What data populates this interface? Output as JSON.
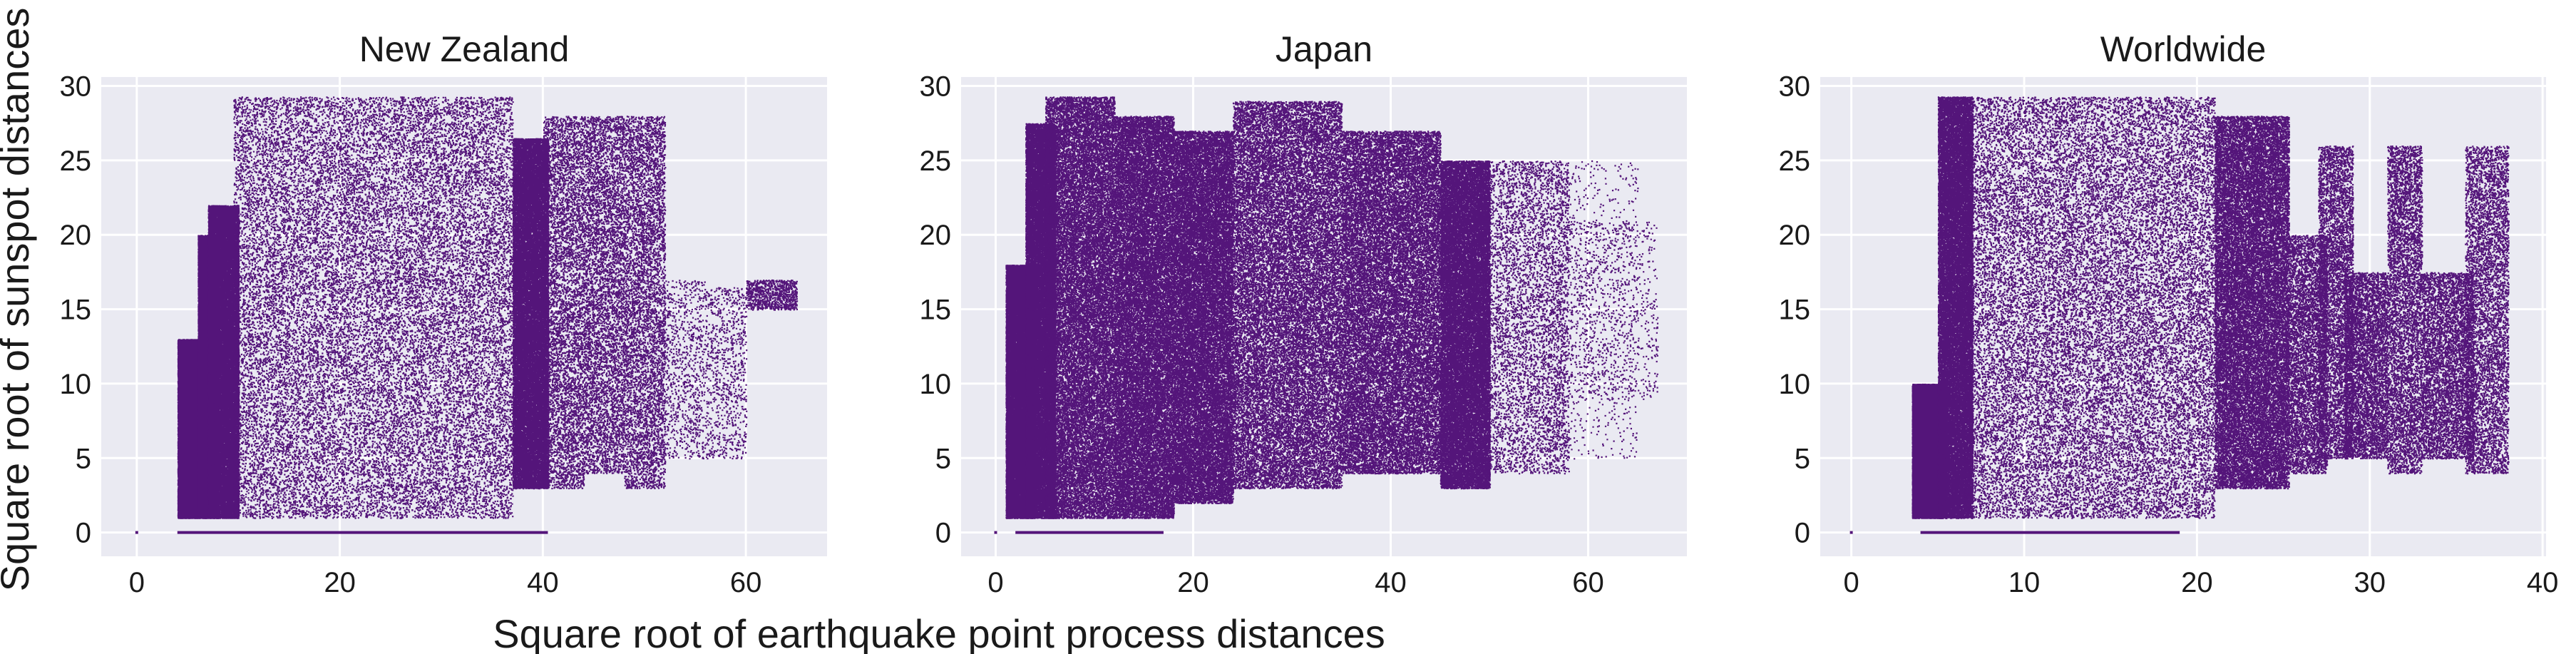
{
  "figure": {
    "xlabel": "Square root of earthquake point process distances",
    "ylabel": "Square root of sunspot distances"
  },
  "style": {
    "point_color": "#54157a",
    "panel_background": "#eaeaf2",
    "grid_color": "#ffffff",
    "grid": true
  },
  "chart_data": [
    {
      "type": "scatter",
      "title": "New Zealand",
      "xlim": [
        -3.5,
        68
      ],
      "ylim": [
        -1.6,
        30.6
      ],
      "xticks": [
        0,
        20,
        40,
        60
      ],
      "yticks": [
        0,
        5,
        10,
        15,
        20,
        25,
        30
      ],
      "baseline_segments": [
        [
          0,
          0,
          0
        ],
        [
          4,
          40.5,
          0
        ]
      ],
      "regions": [
        {
          "x": [
            4,
            7
          ],
          "y": [
            1,
            13
          ],
          "density": "dense"
        },
        {
          "x": [
            6,
            8
          ],
          "y": [
            1,
            20
          ],
          "density": "dense"
        },
        {
          "x": [
            7,
            10
          ],
          "y": [
            1,
            22
          ],
          "density": "dense"
        },
        {
          "x": [
            9.5,
            37
          ],
          "y": [
            1,
            29.3
          ],
          "density": "dense"
        },
        {
          "x": [
            37,
            40.5
          ],
          "y": [
            3,
            26.5
          ],
          "density": "dense"
        },
        {
          "x": [
            40,
            44
          ],
          "y": [
            3,
            28
          ],
          "density": "medium"
        },
        {
          "x": [
            44,
            48
          ],
          "y": [
            4,
            28
          ],
          "density": "medium"
        },
        {
          "x": [
            48,
            52
          ],
          "y": [
            3,
            28
          ],
          "density": "medium"
        },
        {
          "x": [
            52,
            56
          ],
          "y": [
            5,
            17
          ],
          "density": "sparse"
        },
        {
          "x": [
            56,
            60
          ],
          "y": [
            5,
            16.5
          ],
          "density": "sparse"
        },
        {
          "x": [
            60,
            65
          ],
          "y": [
            15,
            17
          ],
          "density": "sparse"
        }
      ]
    },
    {
      "type": "scatter",
      "title": "Japan",
      "xlim": [
        -3.5,
        70
      ],
      "ylim": [
        -1.6,
        30.6
      ],
      "xticks": [
        0,
        20,
        40,
        60
      ],
      "yticks": [
        0,
        5,
        10,
        15,
        20,
        25,
        30
      ],
      "baseline_segments": [
        [
          0,
          0,
          0
        ],
        [
          2,
          17,
          0
        ]
      ],
      "regions": [
        {
          "x": [
            1,
            4
          ],
          "y": [
            1,
            18
          ],
          "density": "dense"
        },
        {
          "x": [
            3,
            6
          ],
          "y": [
            1,
            27.5
          ],
          "density": "dense"
        },
        {
          "x": [
            5,
            12
          ],
          "y": [
            1,
            29.3
          ],
          "density": "dense"
        },
        {
          "x": [
            12,
            18
          ],
          "y": [
            1,
            28
          ],
          "density": "dense"
        },
        {
          "x": [
            18,
            24
          ],
          "y": [
            2,
            27
          ],
          "density": "dense"
        },
        {
          "x": [
            24,
            35
          ],
          "y": [
            3,
            29
          ],
          "density": "dense"
        },
        {
          "x": [
            35,
            45
          ],
          "y": [
            4,
            27
          ],
          "density": "dense"
        },
        {
          "x": [
            45,
            50
          ],
          "y": [
            3,
            25
          ],
          "density": "dense"
        },
        {
          "x": [
            49,
            58
          ],
          "y": [
            4,
            25
          ],
          "density": "medium"
        },
        {
          "x": [
            55,
            65
          ],
          "y": [
            5,
            25
          ],
          "density": "sparse"
        },
        {
          "x": [
            58,
            67
          ],
          "y": [
            9,
            21
          ],
          "density": "sparse"
        }
      ]
    },
    {
      "type": "scatter",
      "title": "Worldwide",
      "xlim": [
        -1.8,
        40.2
      ],
      "ylim": [
        -1.6,
        30.6
      ],
      "xticks": [
        0,
        10,
        20,
        30,
        40
      ],
      "yticks": [
        0,
        5,
        10,
        15,
        20,
        25,
        30
      ],
      "baseline_segments": [
        [
          0,
          0,
          0
        ],
        [
          4,
          19,
          0
        ]
      ],
      "regions": [
        {
          "x": [
            3.5,
            5.5
          ],
          "y": [
            1,
            10
          ],
          "density": "dense"
        },
        {
          "x": [
            5,
            7
          ],
          "y": [
            1,
            29.3
          ],
          "density": "dense"
        },
        {
          "x": [
            6.5,
            21
          ],
          "y": [
            1,
            29.3
          ],
          "density": "dense"
        },
        {
          "x": [
            21,
            25.3
          ],
          "y": [
            3,
            28
          ],
          "density": "dense"
        },
        {
          "x": [
            25.3,
            27.5
          ],
          "y": [
            4,
            20
          ],
          "density": "medium"
        },
        {
          "x": [
            27,
            29
          ],
          "y": [
            5,
            26
          ],
          "density": "medium"
        },
        {
          "x": [
            28.5,
            31
          ],
          "y": [
            5,
            17.5
          ],
          "density": "medium"
        },
        {
          "x": [
            31,
            33
          ],
          "y": [
            4,
            26
          ],
          "density": "medium"
        },
        {
          "x": [
            33,
            36
          ],
          "y": [
            5,
            17.5
          ],
          "density": "medium"
        },
        {
          "x": [
            35.5,
            38
          ],
          "y": [
            4,
            26
          ],
          "density": "medium"
        }
      ]
    }
  ]
}
